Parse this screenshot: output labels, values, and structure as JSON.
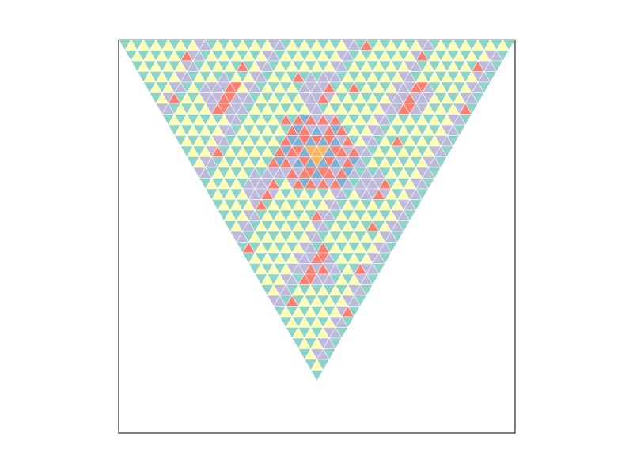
{
  "figure": {
    "description_shape": "inverted-triangle",
    "rows": 32,
    "frame": true
  },
  "palette": {
    "background": "#ffffff",
    "frame": "#000000",
    "teal": "#8dd3c7",
    "yellow": "#ffffb3",
    "lavender": "#bebada",
    "red": "#fb8072",
    "blue": "#80b1d3",
    "orange": "#fdb462"
  }
}
